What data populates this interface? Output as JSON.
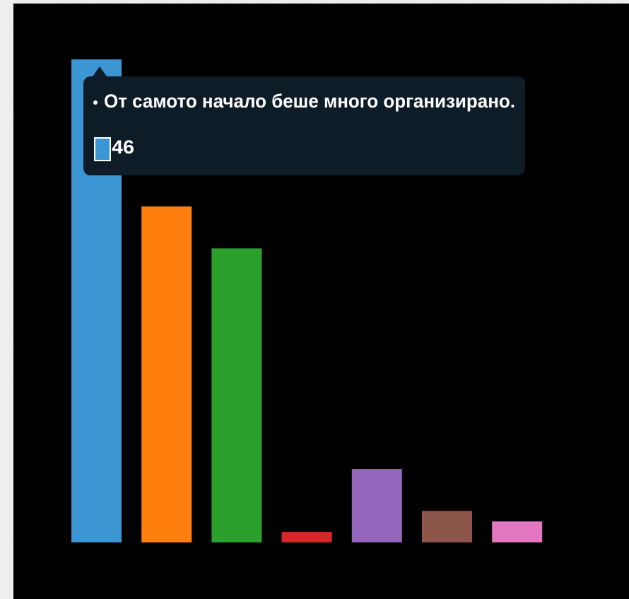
{
  "chart_data": {
    "type": "bar",
    "categories": [
      "От самото начало беше много организирано.",
      null,
      null,
      null,
      null,
      null,
      null
    ],
    "values": [
      46,
      32,
      28,
      1,
      7,
      3,
      2
    ],
    "colors": [
      "#3d96d4",
      "#ff7f0e",
      "#2ca02c",
      "#d62728",
      "#9467bd",
      "#8c564b",
      "#e377c2"
    ]
  }
}
